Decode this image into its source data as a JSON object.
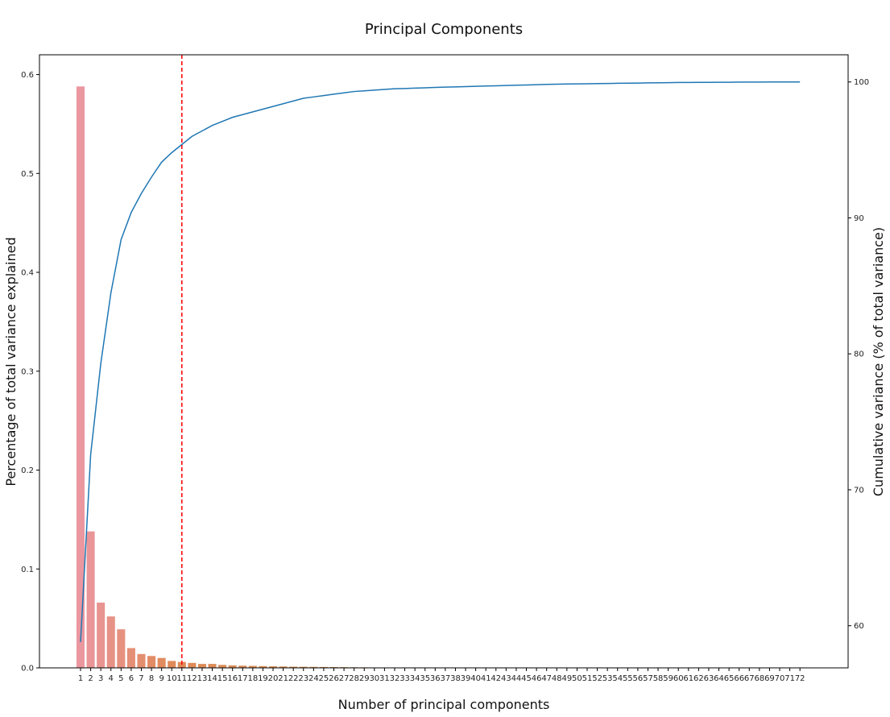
{
  "chart_data": {
    "type": "bar",
    "title": "Principal Components",
    "xlabel": "Number of principal components",
    "ylabel": "Percentage of total variance explained",
    "y2label": "Cumulative variance (% of total variance)",
    "ylim": [
      0,
      0.62
    ],
    "y2lim": [
      56.9,
      102
    ],
    "yticks": [
      "0.0",
      "0.1",
      "0.2",
      "0.3",
      "0.4",
      "0.5",
      "0.6"
    ],
    "y2ticks": [
      "60",
      "70",
      "80",
      "90",
      "100"
    ],
    "grid": false,
    "cutoff_component": 11,
    "cutoff_color": "#ff0000",
    "line_color": "#1f77b4",
    "bar_color_start": "#eb97a0",
    "bar_color_mid": "#e08a5a",
    "bar_color_end": "#c59a4a",
    "categories": [
      "1",
      "2",
      "3",
      "4",
      "5",
      "6",
      "7",
      "8",
      "9",
      "10",
      "11",
      "12",
      "13",
      "14",
      "15",
      "16",
      "17",
      "18",
      "19",
      "20",
      "21",
      "22",
      "23",
      "24",
      "25",
      "26",
      "27",
      "28",
      "29",
      "30",
      "31",
      "32",
      "33",
      "34",
      "35",
      "36",
      "37",
      "38",
      "39",
      "40",
      "41",
      "42",
      "43",
      "44",
      "45",
      "46",
      "47",
      "48",
      "49",
      "50",
      "51",
      "52",
      "53",
      "54",
      "55",
      "56",
      "57",
      "58",
      "59",
      "60",
      "61",
      "62",
      "63",
      "64",
      "65",
      "66",
      "67",
      "68",
      "69",
      "70",
      "71",
      "72"
    ],
    "series": [
      {
        "type": "bar",
        "values": [
          0.588,
          0.138,
          0.066,
          0.052,
          0.039,
          0.02,
          0.014,
          0.012,
          0.01,
          0.007,
          0.006,
          0.005,
          0.004,
          0.004,
          0.003,
          0.0025,
          0.0022,
          0.002,
          0.0018,
          0.0016,
          0.0014,
          0.0012,
          0.0011,
          0.001,
          0.0009,
          0.0008,
          0.0007,
          0.0006,
          0.0005,
          0.0004,
          0.0004,
          0.0003,
          0.0003,
          0.0002,
          0.0002,
          0.0002,
          0.0001,
          0.0001,
          0.0001,
          0.0001,
          0.0001,
          0.0001,
          0,
          0,
          0,
          0,
          0,
          0,
          0,
          0,
          0,
          0,
          0,
          0,
          0,
          0,
          0,
          0,
          0,
          0,
          0,
          0,
          0,
          0,
          0,
          0,
          0,
          0,
          0,
          0,
          0,
          0
        ]
      },
      {
        "type": "line",
        "values": [
          58.8,
          72.6,
          79.3,
          84.5,
          88.4,
          90.4,
          91.8,
          93.0,
          94.1,
          94.8,
          95.4,
          96.0,
          96.4,
          96.8,
          97.1,
          97.4,
          97.6,
          97.8,
          98.0,
          98.2,
          98.4,
          98.6,
          98.8,
          98.9,
          99.0,
          99.1,
          99.2,
          99.3,
          99.35,
          99.4,
          99.45,
          99.5,
          99.52,
          99.55,
          99.57,
          99.6,
          99.62,
          99.64,
          99.66,
          99.68,
          99.7,
          99.72,
          99.74,
          99.76,
          99.78,
          99.8,
          99.82,
          99.84,
          99.85,
          99.86,
          99.87,
          99.88,
          99.89,
          99.9,
          99.91,
          99.92,
          99.93,
          99.94,
          99.95,
          99.96,
          99.96,
          99.97,
          99.97,
          99.98,
          99.98,
          99.99,
          99.99,
          99.99,
          100,
          100,
          100,
          100
        ]
      }
    ]
  }
}
